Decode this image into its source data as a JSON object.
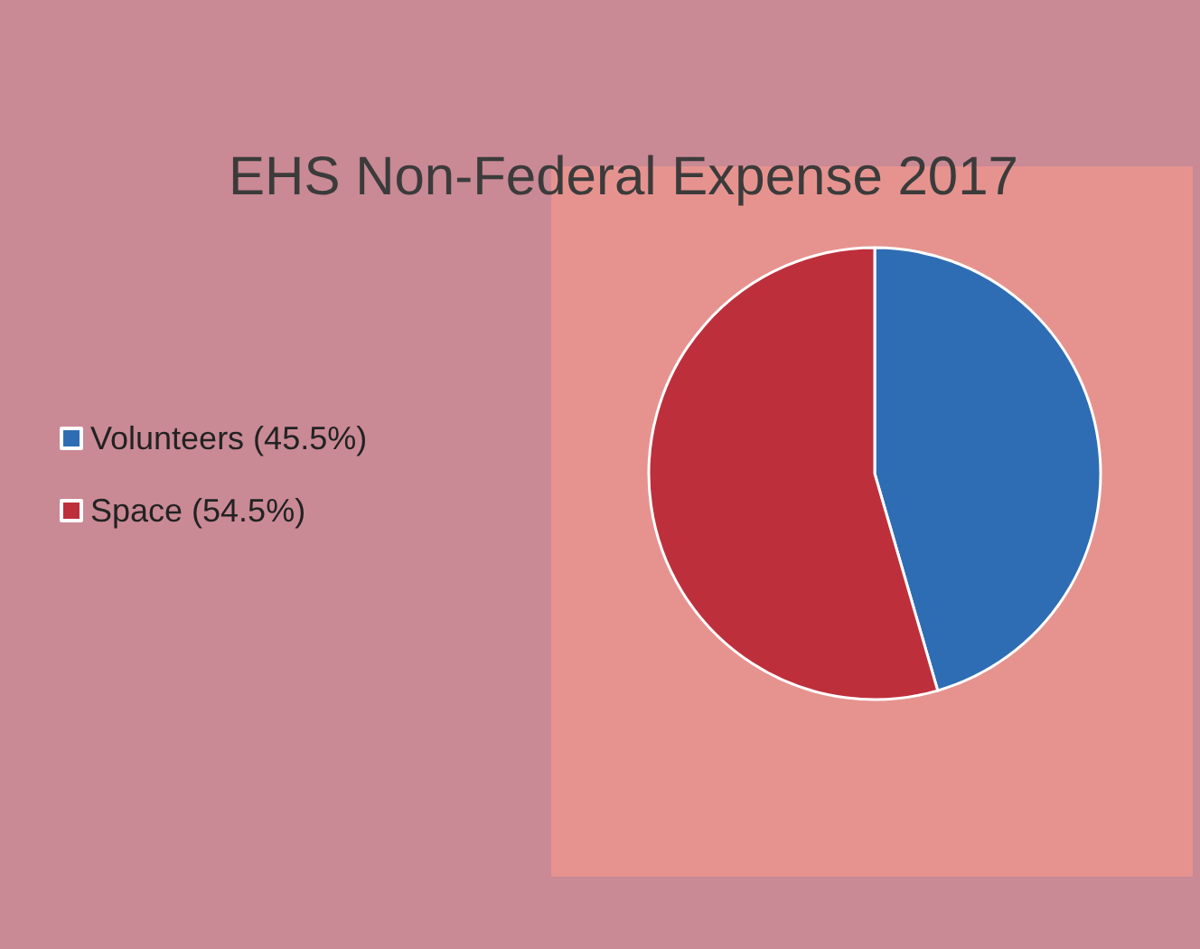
{
  "chart_data": {
    "type": "pie",
    "title": "EHS Non-Federal Expense 2017",
    "categories": [
      "Volunteers (45.5%)",
      "Space (54.5%)"
    ],
    "values": [
      45.5,
      54.5
    ],
    "colors": [
      "#2e6db4",
      "#be2f3c"
    ],
    "legend": "left"
  }
}
